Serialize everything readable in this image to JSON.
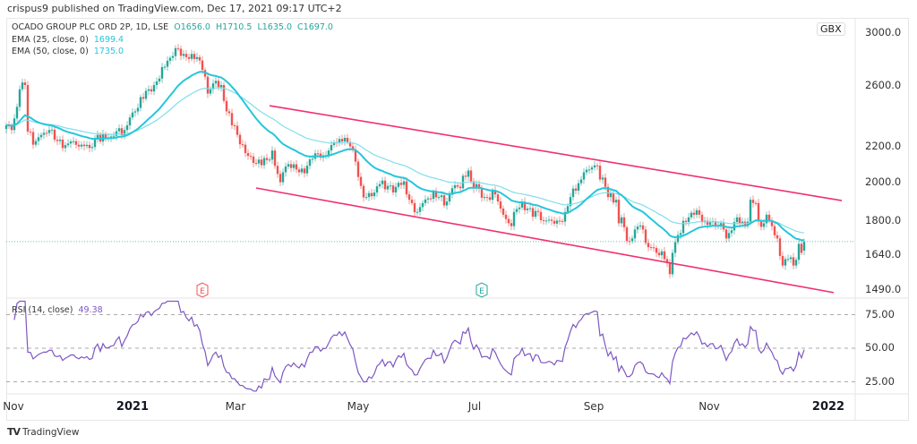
{
  "header": {
    "published": "crispus9 published on TradingView.com, Dec 17, 2021 09:17 UTC+2"
  },
  "symbol": {
    "name": "OCADO GROUP PLC ORD 2P, 1D, LSE",
    "open": "O1656.0",
    "high": "H1710.5",
    "low": "L1635.0",
    "close": "C1697.0"
  },
  "indicators": {
    "ema25": {
      "label": "EMA (25, close, 0)",
      "value": "1699.4"
    },
    "ema50": {
      "label": "EMA (50, close, 0)",
      "value": "1735.0"
    },
    "rsi": {
      "label": "RSI (14, close)",
      "value": "49.38"
    }
  },
  "currency": "GBX",
  "price_axis": [
    "3000.0",
    "2600.0",
    "2200.0",
    "2000.0",
    "1800.0",
    "1640.0",
    "1490.0"
  ],
  "rsi_axis": [
    "75.00",
    "50.00",
    "25.00"
  ],
  "time_axis": [
    {
      "label": "Nov",
      "year": false
    },
    {
      "label": "2021",
      "year": true
    },
    {
      "label": "Mar",
      "year": false
    },
    {
      "label": "May",
      "year": false
    },
    {
      "label": "Jul",
      "year": false
    },
    {
      "label": "Sep",
      "year": false
    },
    {
      "label": "Nov",
      "year": false
    },
    {
      "label": "2022",
      "year": true
    }
  ],
  "events": [
    {
      "label": "E",
      "t": 73,
      "color": "#ef5350"
    },
    {
      "label": "E",
      "t": 177,
      "color": "#26a69a"
    }
  ],
  "brand": "TradingView",
  "colors": {
    "up": "#26a69a",
    "down": "#ef5350",
    "ema25": "#26c6da",
    "ema50": "#80deea",
    "channel": "#f0306e",
    "rsi": "#7e57c2"
  },
  "chart_data": {
    "type": "candlestick",
    "title": "OCADO GROUP PLC ORD 2P, 1D, LSE",
    "scale": "log",
    "ylim": [
      1490,
      3000
    ],
    "last_candle": {
      "open": 1656.0,
      "high": 1710.5,
      "low": 1635.0,
      "close": 1697.0
    },
    "closes_t_price": [
      [
        0,
        2330
      ],
      [
        2,
        2300
      ],
      [
        4,
        2450
      ],
      [
        5,
        2570
      ],
      [
        7,
        2600
      ],
      [
        8,
        2290
      ],
      [
        10,
        2210
      ],
      [
        13,
        2270
      ],
      [
        16,
        2300
      ],
      [
        18,
        2240
      ],
      [
        21,
        2190
      ],
      [
        24,
        2230
      ],
      [
        28,
        2210
      ],
      [
        31,
        2190
      ],
      [
        34,
        2270
      ],
      [
        39,
        2260
      ],
      [
        44,
        2300
      ],
      [
        46,
        2380
      ],
      [
        48,
        2420
      ],
      [
        51,
        2505
      ],
      [
        53,
        2570
      ],
      [
        55,
        2600
      ],
      [
        58,
        2730
      ],
      [
        61,
        2800
      ],
      [
        64,
        2870
      ],
      [
        66,
        2830
      ],
      [
        69,
        2830
      ],
      [
        72,
        2780
      ],
      [
        74,
        2660
      ],
      [
        75,
        2540
      ],
      [
        76,
        2570
      ],
      [
        78,
        2630
      ],
      [
        80,
        2600
      ],
      [
        82,
        2420
      ],
      [
        84,
        2330
      ],
      [
        86,
        2270
      ],
      [
        88,
        2210
      ],
      [
        91,
        2140
      ],
      [
        93,
        2100
      ],
      [
        95,
        2090
      ],
      [
        97,
        2120
      ],
      [
        99,
        2175
      ],
      [
        102,
        1995
      ],
      [
        103,
        2050
      ],
      [
        107,
        2095
      ],
      [
        109,
        2050
      ],
      [
        112,
        2087
      ],
      [
        114,
        2127
      ],
      [
        118,
        2147
      ],
      [
        120,
        2175
      ],
      [
        122,
        2225
      ],
      [
        125,
        2230
      ],
      [
        128,
        2200
      ],
      [
        130,
        2110
      ],
      [
        132,
        1975
      ],
      [
        134,
        1916
      ],
      [
        137,
        1940
      ],
      [
        139,
        1985
      ],
      [
        142,
        1975
      ],
      [
        145,
        1970
      ],
      [
        148,
        2000
      ],
      [
        149,
        1930
      ],
      [
        151,
        1885
      ],
      [
        153,
        1840
      ],
      [
        155,
        1885
      ],
      [
        158,
        1907
      ],
      [
        161,
        1916
      ],
      [
        164,
        1893
      ],
      [
        166,
        1963
      ],
      [
        169,
        1963
      ],
      [
        172,
        2060
      ],
      [
        173,
        2000
      ],
      [
        175,
        1985
      ],
      [
        178,
        1916
      ],
      [
        180,
        1902
      ],
      [
        182,
        1930
      ],
      [
        184,
        1857
      ],
      [
        185,
        1826
      ],
      [
        188,
        1770
      ],
      [
        189,
        1840
      ],
      [
        191,
        1862
      ],
      [
        194,
        1857
      ],
      [
        198,
        1840
      ],
      [
        200,
        1796
      ],
      [
        203,
        1796
      ],
      [
        207,
        1792
      ],
      [
        208,
        1840
      ],
      [
        210,
        1916
      ],
      [
        212,
        1950
      ],
      [
        214,
        2010
      ],
      [
        215,
        2050
      ],
      [
        218,
        2077
      ],
      [
        220,
        2087
      ],
      [
        221,
        2010
      ],
      [
        223,
        1970
      ],
      [
        224,
        1916
      ],
      [
        227,
        1902
      ],
      [
        228,
        1784
      ],
      [
        229,
        1813
      ],
      [
        231,
        1700
      ],
      [
        233,
        1712
      ],
      [
        234,
        1754
      ],
      [
        237,
        1754
      ],
      [
        238,
        1691
      ],
      [
        240,
        1671
      ],
      [
        242,
        1646
      ],
      [
        245,
        1618
      ],
      [
        247,
        1553
      ],
      [
        248,
        1646
      ],
      [
        250,
        1728
      ],
      [
        252,
        1796
      ],
      [
        254,
        1813
      ],
      [
        255,
        1836
      ],
      [
        258,
        1826
      ],
      [
        260,
        1796
      ],
      [
        262,
        1792
      ],
      [
        264,
        1770
      ],
      [
        267,
        1754
      ],
      [
        268,
        1712
      ],
      [
        270,
        1750
      ],
      [
        272,
        1813
      ],
      [
        274,
        1792
      ],
      [
        276,
        1792
      ],
      [
        277,
        1902
      ],
      [
        279,
        1885
      ],
      [
        280,
        1792
      ],
      [
        282,
        1784
      ],
      [
        283,
        1826
      ],
      [
        284,
        1796
      ],
      [
        285,
        1770
      ],
      [
        287,
        1712
      ],
      [
        288,
        1632
      ],
      [
        289,
        1590
      ],
      [
        290,
        1618
      ],
      [
        292,
        1626
      ],
      [
        293,
        1590
      ],
      [
        295,
        1687
      ],
      [
        296,
        1646
      ],
      [
        297,
        1697
      ]
    ],
    "drawings": [
      {
        "type": "trendline",
        "name": "upper-channel",
        "from": [
          98,
          2458
        ],
        "to": [
          311,
          1898
        ]
      },
      {
        "type": "trendline",
        "name": "lower-channel",
        "from": [
          93,
          1964
        ],
        "to": [
          308,
          1477
        ]
      }
    ],
    "rsi_levels": [
      75,
      50,
      25
    ],
    "rsi_ylim": [
      15,
      85
    ]
  }
}
